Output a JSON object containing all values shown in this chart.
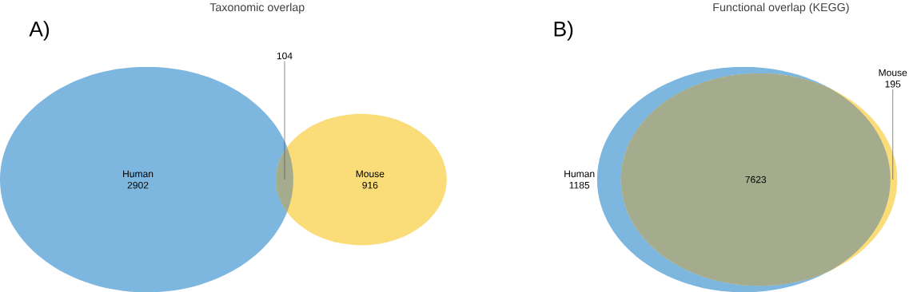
{
  "chart_data": [
    {
      "type": "other",
      "title": "Taxonomic overlap",
      "categories": [
        "Human",
        "Mouse"
      ],
      "values": [
        2902,
        916
      ],
      "colors": [
        "#7db6df",
        "#fadc78"
      ],
      "data_labels": true,
      "annotations": [
        "A)",
        "104"
      ]
    },
    {
      "type": "other",
      "title": "Functional overlap (KEGG)",
      "categories": [
        "Human",
        "Mouse"
      ],
      "values": [
        1185,
        195
      ],
      "colors": [
        "#7db6df",
        "#fadc78"
      ],
      "data_labels": true,
      "annotations": [
        "B)",
        "7623"
      ]
    }
  ]
}
